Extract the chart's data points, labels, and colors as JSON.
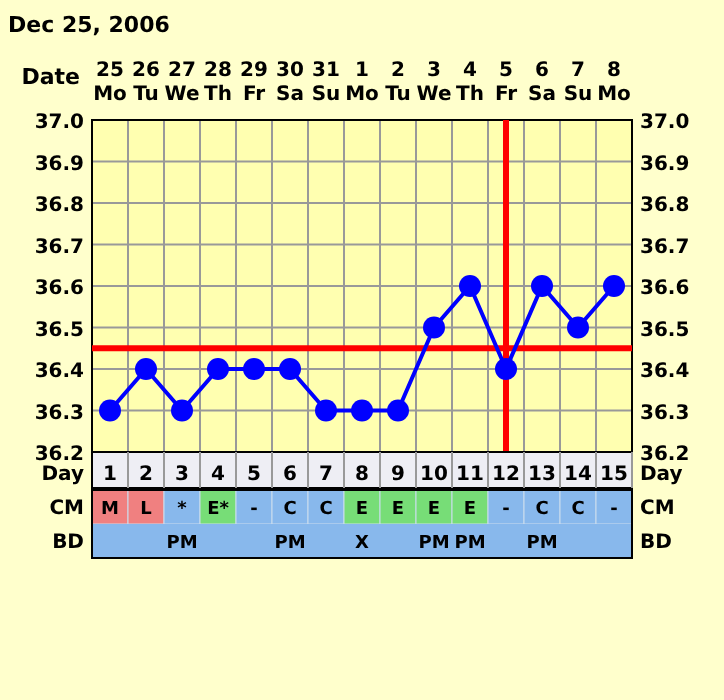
{
  "chart_data": [
    {
      "type": "line",
      "title": "Dec 25, 2006",
      "xlabel": "Date",
      "x2label": "Day",
      "categories": [
        "25 Mo",
        "26 Tu",
        "27 We",
        "28 Th",
        "29 Fr",
        "30 Sa",
        "31 Su",
        "1 Mo",
        "2 Tu",
        "3 We",
        "4 Th",
        "5 Fr",
        "6 Sa",
        "7 Su",
        "8 Mo"
      ],
      "series": [
        {
          "color": "#0000ff",
          "values": [
            36.3,
            36.4,
            36.3,
            36.4,
            36.4,
            36.4,
            36.3,
            36.3,
            36.3,
            36.5,
            36.6,
            36.4,
            36.6,
            36.5,
            36.6
          ]
        }
      ],
      "marker": "circle",
      "grid": true,
      "ylim": [
        36.2,
        37.0
      ],
      "yticks": [
        36.2,
        36.3,
        36.4,
        36.5,
        36.6,
        36.7,
        36.8,
        36.9,
        {
          "value": 37,
          "label": "37.0"
        }
      ],
      "y2lim": [
        36.2,
        37.0
      ],
      "y2ticks": [
        36.2,
        36.3,
        36.4,
        36.5,
        36.6,
        36.7,
        36.8,
        36.9,
        {
          "value": 37,
          "label": "37.0"
        }
      ],
      "x2lim": [
        0.5,
        15.5
      ],
      "x2ticks": [
        1,
        2,
        3,
        4,
        5,
        6,
        7,
        8,
        9,
        10,
        11,
        12,
        13,
        14,
        15
      ],
      "ref_lines": [
        {
          "axis": "y",
          "value": 36.45,
          "color": "#ff0000"
        },
        {
          "axis": "x",
          "value": "5 Fr",
          "color": "#ff0000"
        }
      ]
    },
    {
      "type": "heatmap",
      "tick_labels": "y",
      "categories": [
        null,
        null,
        null,
        null,
        null,
        null,
        null,
        null,
        null,
        null,
        null,
        null,
        null,
        null,
        null
      ],
      "y_categories": [
        "CM",
        "BD"
      ],
      "y2_categories": [
        "CM",
        "BD"
      ],
      "cells": [
        [
          null,
          null,
          null,
          null,
          null,
          null,
          null,
          null,
          null,
          null,
          null,
          null,
          null,
          null,
          null
        ],
        [
          null,
          null,
          null,
          null,
          null,
          null,
          null,
          null,
          null,
          null,
          null,
          null,
          null,
          null,
          null
        ]
      ],
      "cell_labels": [
        [
          "M",
          "L",
          "*",
          "E*",
          "-",
          "C",
          "C",
          "E",
          "E",
          "E",
          "E",
          "-",
          "C",
          "C",
          "-"
        ],
        [
          null,
          null,
          "PM",
          null,
          null,
          "PM",
          null,
          "X",
          null,
          "PM",
          "PM",
          null,
          "PM",
          null,
          null
        ]
      ],
      "colors": [
        [
          "#f08080",
          "#f08080",
          "#88b8ec",
          "#77dd77",
          "#88b8ec",
          "#88b8ec",
          "#88b8ec",
          "#77dd77",
          "#77dd77",
          "#77dd77",
          "#77dd77",
          "#88b8ec",
          "#88b8ec",
          "#88b8ec",
          "#88b8ec"
        ],
        [
          "#88b8ec",
          "#88b8ec",
          "#88b8ec",
          "#88b8ec",
          "#88b8ec",
          "#88b8ec",
          "#88b8ec",
          "#88b8ec",
          "#88b8ec",
          "#88b8ec",
          "#88b8ec",
          "#88b8ec",
          "#88b8ec",
          "#88b8ec",
          "#88b8ec"
        ]
      ]
    }
  ]
}
